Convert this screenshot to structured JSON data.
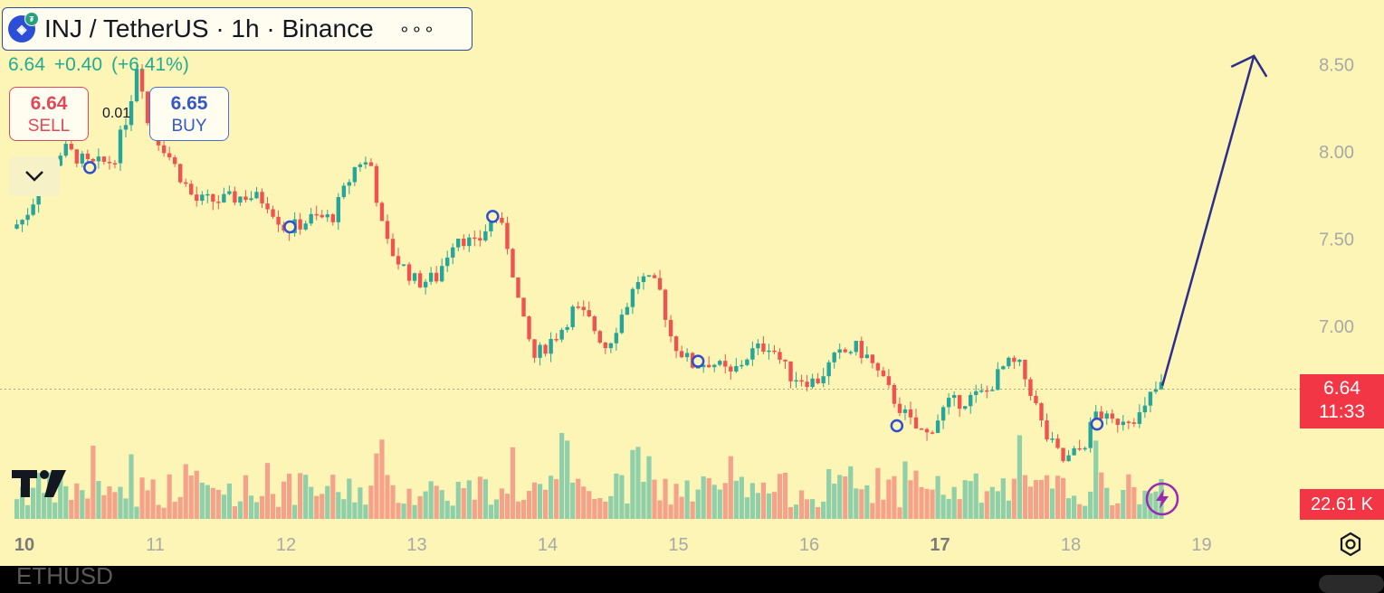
{
  "header": {
    "symbol_title": "INJ / TetherUS · 1h · Binance",
    "menu_icon": "more-dots-icon",
    "last_price": "6.64",
    "change_abs": "+0.40",
    "change_pct": "(+6.41%)"
  },
  "trade": {
    "sell_price": "6.64",
    "sell_label": "SELL",
    "buy_price": "6.65",
    "buy_label": "BUY",
    "spread": "0.01"
  },
  "price_tag": {
    "price": "6.64",
    "countdown": "11:33"
  },
  "volume_tag": {
    "value": "22.61 K"
  },
  "footer": {
    "ticker": "ETHUSD"
  },
  "colors": {
    "background": "#fdf5b6",
    "up": "#26a69a",
    "down": "#ef5350",
    "up_volume": "#8fcfa9",
    "down_volume": "#f4a38a",
    "arrow": "#2b2e8f",
    "marker": "#2e4fd0",
    "tag": "#f23645"
  },
  "chart_data": {
    "type": "candlestick",
    "y_axis": {
      "ticks": [
        "8.50",
        "8.00",
        "7.50",
        "7.00"
      ],
      "range": [
        6.06,
        8.85
      ]
    },
    "x_axis": {
      "ticks": [
        "10",
        "11",
        "12",
        "13",
        "14",
        "15",
        "16",
        "17",
        "18",
        "19"
      ],
      "bold": [
        "10",
        "17"
      ]
    },
    "last_price_line": 6.64,
    "price_path": [
      [
        9.9,
        7.56
      ],
      [
        10.0,
        7.62
      ],
      [
        10.15,
        7.85
      ],
      [
        10.3,
        8.02
      ],
      [
        10.5,
        7.92
      ],
      [
        10.68,
        7.95
      ],
      [
        10.8,
        8.25
      ],
      [
        10.87,
        8.55
      ],
      [
        10.95,
        8.12
      ],
      [
        11.05,
        8.05
      ],
      [
        11.3,
        7.72
      ],
      [
        11.5,
        7.72
      ],
      [
        11.7,
        7.75
      ],
      [
        11.85,
        7.72
      ],
      [
        12.0,
        7.55
      ],
      [
        12.2,
        7.62
      ],
      [
        12.35,
        7.62
      ],
      [
        12.55,
        7.95
      ],
      [
        12.65,
        7.92
      ],
      [
        12.75,
        7.5
      ],
      [
        12.85,
        7.38
      ],
      [
        13.0,
        7.25
      ],
      [
        13.15,
        7.28
      ],
      [
        13.3,
        7.53
      ],
      [
        13.45,
        7.46
      ],
      [
        13.6,
        7.65
      ],
      [
        13.7,
        7.45
      ],
      [
        13.8,
        7.05
      ],
      [
        13.9,
        6.82
      ],
      [
        14.1,
        6.98
      ],
      [
        14.2,
        7.1
      ],
      [
        14.3,
        7.05
      ],
      [
        14.45,
        6.88
      ],
      [
        14.6,
        7.12
      ],
      [
        14.7,
        7.28
      ],
      [
        14.85,
        7.22
      ],
      [
        14.95,
        6.92
      ],
      [
        15.1,
        6.78
      ],
      [
        15.25,
        6.8
      ],
      [
        15.4,
        6.72
      ],
      [
        15.55,
        6.85
      ],
      [
        15.7,
        6.9
      ],
      [
        15.85,
        6.72
      ],
      [
        16.05,
        6.68
      ],
      [
        16.2,
        6.82
      ],
      [
        16.35,
        6.88
      ],
      [
        16.45,
        6.82
      ],
      [
        16.55,
        6.7
      ],
      [
        16.65,
        6.58
      ],
      [
        16.8,
        6.42
      ],
      [
        16.9,
        6.38
      ],
      [
        17.05,
        6.55
      ],
      [
        17.2,
        6.58
      ],
      [
        17.35,
        6.62
      ],
      [
        17.5,
        6.78
      ],
      [
        17.6,
        6.78
      ],
      [
        17.7,
        6.62
      ],
      [
        17.8,
        6.38
      ],
      [
        17.95,
        6.22
      ],
      [
        18.1,
        6.32
      ],
      [
        18.2,
        6.52
      ],
      [
        18.3,
        6.44
      ],
      [
        18.4,
        6.48
      ],
      [
        18.55,
        6.49
      ],
      [
        18.62,
        6.62
      ],
      [
        18.7,
        6.66
      ]
    ],
    "signal_markers": [
      [
        10.5,
        7.91
      ],
      [
        12.03,
        7.57
      ],
      [
        13.58,
        7.63
      ],
      [
        15.15,
        6.8
      ],
      [
        16.67,
        6.43
      ],
      [
        18.2,
        6.44
      ]
    ],
    "projection_arrow": {
      "from": [
        18.7,
        6.66
      ],
      "to": [
        19.4,
        8.55
      ]
    },
    "volume_unit": "K"
  }
}
